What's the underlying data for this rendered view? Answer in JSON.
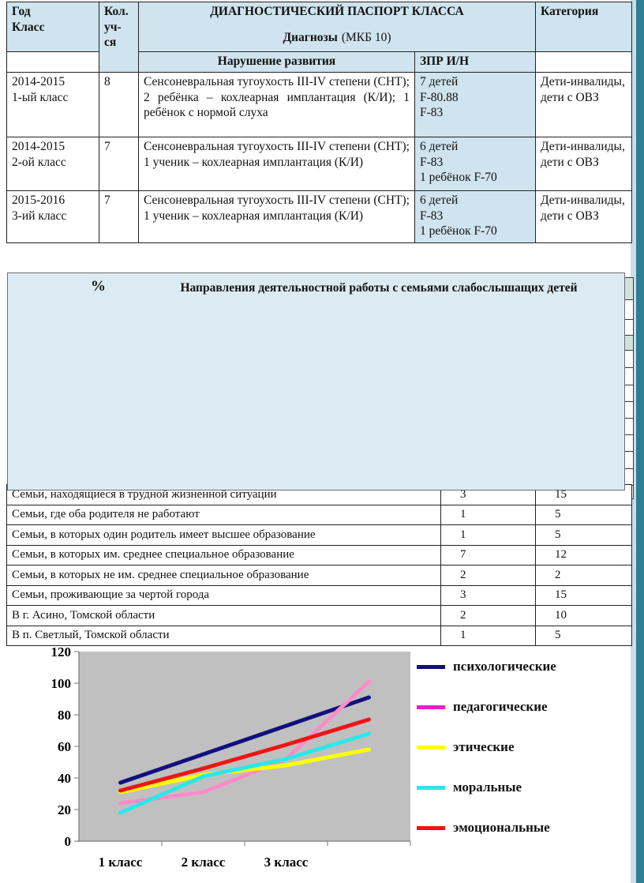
{
  "page": {
    "accent_strip_color": "#2e7e95",
    "accent_strip_light_color": "#c9dfe9",
    "background": "#ffffff"
  },
  "diagnostic_table": {
    "header_fill": "#cfe4ee",
    "header": {
      "col_year": "Год\nКласс",
      "col_count": "Кол.\nуч-\nся",
      "title": "ДИАГНОСТИЧЕСКИЙ ПАСПОРТ КЛАССА",
      "subtitle_bold": "Диагнозы",
      "subtitle_normal": "(МКБ 10)",
      "col_category": "Категория",
      "col_disorder": "Нарушение развития",
      "col_zpr": "ЗПР  И/Н"
    },
    "rows": [
      {
        "year": "2014-2015\n1-ый класс",
        "count": "8",
        "diagnosis": "Сенсоневральная тугоухость III-IV степени (СНТ); 2 ребёнка – кохлеарная имплантация (К/И); 1 ребёнок с нормой слуха",
        "zpr": "7 детей\nF-80.88\nF-83",
        "category": "Дети-инвалиды, дети с ОВЗ"
      },
      {
        "year": "2014-2015\n2-ой класс",
        "count": "7",
        "diagnosis": "Сенсоневральная тугоухость III-IV степени (СНТ); 1 ученик – кохлеарная имплантация (К/И)",
        "zpr": "6 детей\nF-83\n1 ребёнок F-70",
        "category": "Дети-инвалиды, дети с ОВЗ"
      },
      {
        "year": "2015-2016\n3-ий класс",
        "count": "7",
        "diagnosis": "Сенсоневральная тугоухость III-IV степени (СНТ); 1 ученик – кохлеарная имплантация (К/И)",
        "zpr": "6 детей\nF-83\n1 ребёнок F-70",
        "category": "Дети-инвалиды, дети с ОВЗ"
      }
    ]
  },
  "overlay_box": {
    "fill": "#dcebf3",
    "percent_label": "%",
    "title": "Направления деятельностной работы с семьями  слабослышащих детей"
  },
  "families_table": {
    "rows": [
      {
        "label": "Семьи, находящиеся в трудной жизненной ситуации",
        "count": "3",
        "percent": "15"
      },
      {
        "label": "Семьи, где оба родителя не работают",
        "count": "1",
        "percent": "5"
      },
      {
        "label": "Семьи, в которых один родитель имеет высшее образование",
        "count": "1",
        "percent": "5"
      },
      {
        "label": "Семьи, в которых им. среднее специальное образование",
        "count": "7",
        "percent": "12"
      },
      {
        "label": "Семьи, в которых не им. среднее специальное образование",
        "count": "2",
        "percent": "2"
      },
      {
        "label": "Семьи, проживающие за чертой города",
        "count": "3",
        "percent": "15"
      },
      {
        "label": "В г. Асино, Томской области",
        "count": "2",
        "percent": "10"
      },
      {
        "label": "В п. Светлый, Томской области",
        "count": "1",
        "percent": "5"
      }
    ]
  },
  "chart_data": {
    "type": "line",
    "title": "",
    "xlabel": "",
    "ylabel": "",
    "categories": [
      "1 класс",
      "2 класс",
      "3 класс",
      ""
    ],
    "series": [
      {
        "name": "психологические",
        "color": "#10107e",
        "legend_color": "#10107e",
        "values": [
          37,
          55,
          73,
          91
        ]
      },
      {
        "name": "педагогические",
        "color": "#ff8cc8",
        "legend_color": "#e81ed2",
        "values": [
          24,
          31,
          52,
          101
        ]
      },
      {
        "name": "этические",
        "color": "#ffff00",
        "legend_color": "#ffff00",
        "values": [
          31,
          42,
          48,
          58
        ]
      },
      {
        "name": "моральные",
        "color": "#2ae8e8",
        "legend_color": "#2ae8e8",
        "values": [
          18,
          41,
          52,
          68
        ]
      },
      {
        "name": "эмоциональные",
        "color": "#f01414",
        "legend_color": "#f01414",
        "values": [
          32,
          46,
          61,
          77
        ]
      }
    ],
    "ylim": [
      0,
      120
    ],
    "ytick_step": 20,
    "plot_background": "#c0c0c0",
    "grid": false,
    "legend_position": "right"
  }
}
